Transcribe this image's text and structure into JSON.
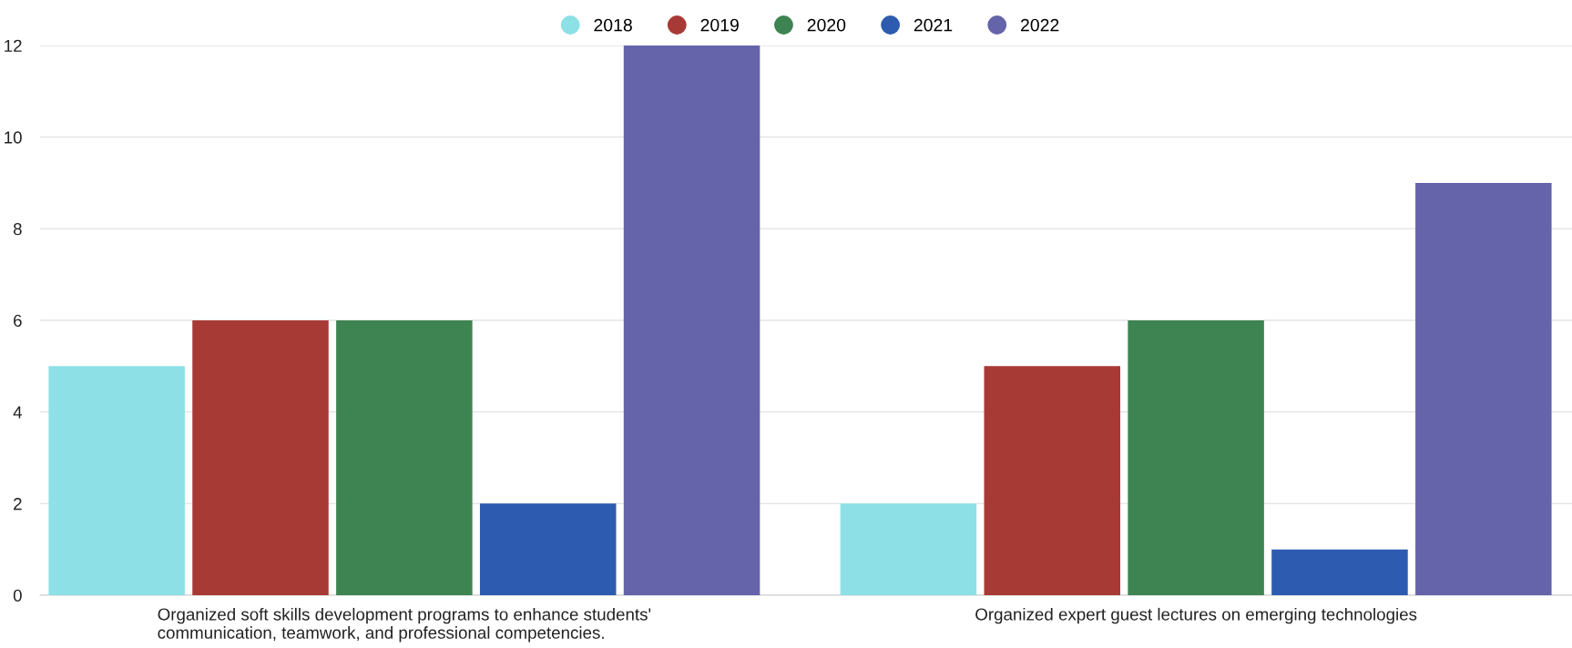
{
  "chart_data": {
    "type": "bar",
    "categories": [
      "Organized soft skills development programs to enhance students'\ncommunication, teamwork, and professional competencies.",
      "Organized expert guest lectures on emerging technologies"
    ],
    "series": [
      {
        "name": "2018",
        "color": "#8de0e6",
        "values": [
          5,
          2
        ]
      },
      {
        "name": "2019",
        "color": "#a83a36",
        "values": [
          6,
          5
        ]
      },
      {
        "name": "2020",
        "color": "#3e8452",
        "values": [
          6,
          6
        ]
      },
      {
        "name": "2021",
        "color": "#2d5baf",
        "values": [
          2,
          1
        ]
      },
      {
        "name": "2022",
        "color": "#6563a9",
        "values": [
          12,
          9
        ]
      }
    ],
    "ylim": [
      0,
      12
    ],
    "yticks": [
      0,
      2,
      4,
      6,
      8,
      10,
      12
    ],
    "grid": "y",
    "legend": "top"
  }
}
